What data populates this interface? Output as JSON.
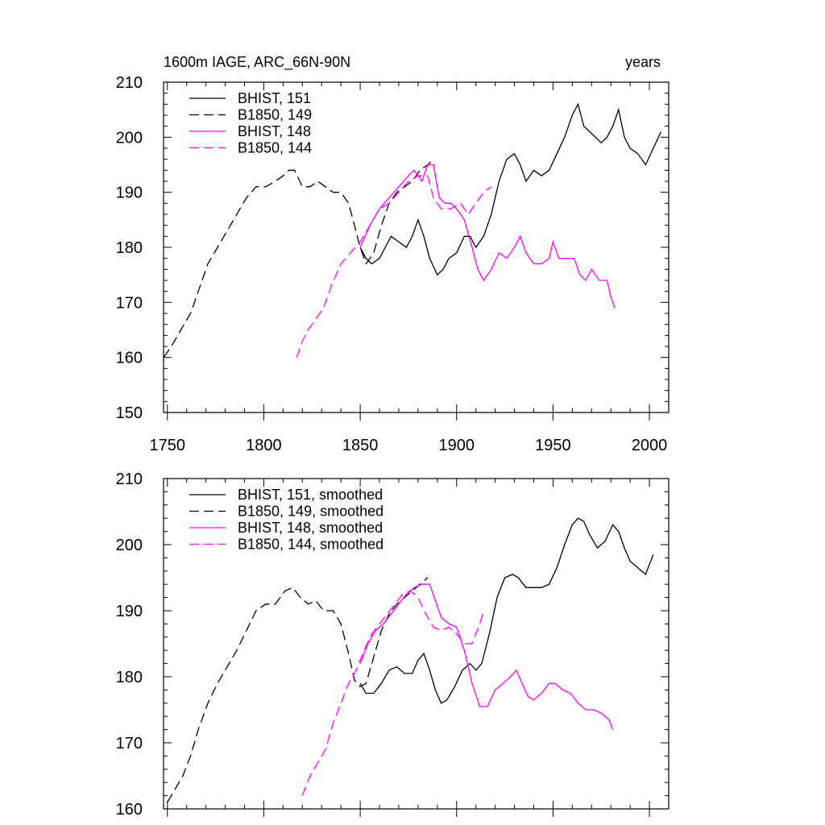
{
  "title_left": "1600m IAGE, ARC_66N-90N",
  "title_right": "years",
  "colors": {
    "black": "#000000",
    "magenta": "#ff00ff"
  },
  "chart_data": [
    {
      "type": "line",
      "xlim": [
        1748,
        2010
      ],
      "ylim": [
        150,
        210
      ],
      "xticks": [
        1750,
        1800,
        1850,
        1900,
        1950,
        2000
      ],
      "yticks": [
        150,
        160,
        170,
        180,
        190,
        200,
        210
      ],
      "xtick_labels_visible": true,
      "legend_position": "top-left",
      "series": [
        {
          "name": "BHIST, 151",
          "color": "#000000",
          "dash": "solid",
          "x": [
            1850,
            1853,
            1856,
            1860,
            1863,
            1866,
            1870,
            1874,
            1877,
            1880,
            1883,
            1886,
            1890,
            1893,
            1896,
            1900,
            1904,
            1907,
            1910,
            1914,
            1918,
            1922,
            1926,
            1930,
            1933,
            1936,
            1940,
            1944,
            1948,
            1952,
            1956,
            1960,
            1963,
            1966,
            1969,
            1972,
            1975,
            1978,
            1981,
            1984,
            1987,
            1990,
            1994,
            1998,
            2002,
            2006
          ],
          "y": [
            180,
            178,
            177,
            178,
            180,
            182,
            181,
            180,
            182,
            185,
            182,
            178,
            175,
            176,
            178,
            179,
            182,
            182,
            180,
            182,
            186,
            192,
            196,
            197,
            195,
            192,
            194,
            193,
            194,
            197,
            200,
            204,
            206,
            202,
            201,
            200,
            199,
            200,
            202,
            205,
            200,
            198,
            197,
            195,
            198,
            201
          ]
        },
        {
          "name": "B1850, 149",
          "color": "#000000",
          "dash": "dashed",
          "x": [
            1748,
            1752,
            1757,
            1762,
            1766,
            1771,
            1776,
            1781,
            1786,
            1791,
            1796,
            1801,
            1806,
            1810,
            1813,
            1816,
            1820,
            1824,
            1828,
            1832,
            1836,
            1840,
            1844,
            1847,
            1850,
            1853,
            1857,
            1861,
            1865,
            1869,
            1873,
            1877,
            1881,
            1885,
            1888
          ],
          "y": [
            160,
            162,
            165,
            168,
            172,
            177,
            180,
            183,
            186,
            189,
            191,
            191,
            192,
            193,
            194,
            194,
            191,
            191,
            192,
            191,
            190,
            190,
            188,
            184,
            180,
            177,
            179,
            184,
            188,
            190,
            191,
            192,
            194,
            195,
            196
          ]
        },
        {
          "name": "BHIST, 148",
          "color": "#ff00ff",
          "dash": "solid",
          "x": [
            1850,
            1855,
            1860,
            1865,
            1870,
            1875,
            1878,
            1882,
            1885,
            1888,
            1891,
            1894,
            1897,
            1900,
            1904,
            1908,
            1911,
            1914,
            1918,
            1922,
            1926,
            1930,
            1933,
            1936,
            1940,
            1944,
            1948,
            1950,
            1953,
            1957,
            1961,
            1964,
            1967,
            1970,
            1974,
            1978,
            1980,
            1982
          ],
          "y": [
            180,
            184,
            187,
            189,
            191,
            193,
            194,
            192,
            195,
            195,
            189,
            188,
            188,
            187,
            185,
            180,
            176,
            174,
            176,
            179,
            178,
            180,
            182,
            179,
            177,
            177,
            178,
            181,
            178,
            178,
            178,
            175,
            174,
            176,
            174,
            174,
            171,
            169
          ]
        },
        {
          "name": "B1850, 144",
          "color": "#ff00ff",
          "dash": "dashed",
          "x": [
            1817,
            1820,
            1823,
            1827,
            1831,
            1835,
            1840,
            1845,
            1850,
            1855,
            1860,
            1865,
            1870,
            1875,
            1880,
            1885,
            1888,
            1892,
            1897,
            1902,
            1906,
            1910,
            1914,
            1918
          ],
          "y": [
            160,
            163,
            165,
            167,
            169,
            173,
            177,
            179,
            181,
            184,
            187,
            188,
            190,
            192,
            193,
            193,
            189,
            187,
            187,
            188,
            186,
            188,
            190,
            191
          ]
        }
      ]
    },
    {
      "type": "line",
      "xlim": [
        1748,
        2010
      ],
      "ylim": [
        160,
        210
      ],
      "xticks": [
        1750,
        1800,
        1850,
        1900,
        1950,
        2000
      ],
      "yticks": [
        160,
        170,
        180,
        190,
        200,
        210
      ],
      "xtick_labels_visible": false,
      "legend_position": "top-left",
      "series": [
        {
          "name": "BHIST, 151, smoothed",
          "color": "#000000",
          "dash": "solid",
          "x": [
            1850,
            1853,
            1857,
            1861,
            1865,
            1869,
            1873,
            1877,
            1880,
            1883,
            1886,
            1889,
            1892,
            1895,
            1899,
            1903,
            1907,
            1910,
            1913,
            1917,
            1921,
            1925,
            1929,
            1932,
            1936,
            1940,
            1944,
            1948,
            1952,
            1956,
            1960,
            1963,
            1966,
            1969,
            1973,
            1977,
            1981,
            1984,
            1987,
            1990,
            1994,
            1998,
            2002
          ],
          "y": [
            179,
            177.5,
            177.5,
            179,
            181,
            181.5,
            180.5,
            180.5,
            182.5,
            183.5,
            181,
            178,
            176,
            176.5,
            178.5,
            181,
            182,
            181,
            182,
            186.5,
            192,
            195,
            195.5,
            195,
            193.5,
            193.5,
            193.5,
            194,
            196.5,
            200,
            203,
            204,
            203.5,
            201.5,
            199.5,
            200.5,
            203,
            202,
            199.5,
            197.5,
            196.5,
            195.5,
            198.5
          ]
        },
        {
          "name": "B1850, 149, smoothed",
          "color": "#000000",
          "dash": "dashed",
          "x": [
            1750,
            1754,
            1758,
            1762,
            1766,
            1771,
            1776,
            1781,
            1786,
            1791,
            1796,
            1801,
            1806,
            1811,
            1815,
            1819,
            1823,
            1827,
            1831,
            1836,
            1840,
            1844,
            1847,
            1850,
            1853,
            1857,
            1861,
            1865,
            1869,
            1873,
            1877,
            1881,
            1885
          ],
          "y": [
            161,
            163,
            165,
            168,
            172,
            176,
            179,
            181.5,
            184,
            187,
            190,
            191,
            191,
            193,
            193.5,
            192,
            191,
            191.5,
            190,
            190,
            188,
            183.5,
            179.5,
            178.5,
            179,
            183,
            187,
            189.5,
            191,
            192,
            193,
            194,
            195
          ]
        },
        {
          "name": "BHIST, 148, smoothed",
          "color": "#ff00ff",
          "dash": "solid",
          "x": [
            1850,
            1854,
            1858,
            1862,
            1866,
            1870,
            1874,
            1878,
            1882,
            1886,
            1889,
            1892,
            1896,
            1900,
            1904,
            1908,
            1912,
            1916,
            1920,
            1924,
            1928,
            1931,
            1934,
            1937,
            1940,
            1944,
            1948,
            1951,
            1955,
            1959,
            1963,
            1967,
            1971,
            1975,
            1979,
            1981
          ],
          "y": [
            182,
            185,
            187,
            188,
            189.5,
            191,
            192.5,
            193.5,
            194,
            194,
            191.5,
            189,
            188,
            187.5,
            184,
            179,
            175.5,
            175.5,
            178,
            179,
            180,
            181,
            179,
            177,
            176.5,
            177.5,
            179,
            179,
            178,
            177.5,
            176,
            175,
            175,
            174.5,
            173.5,
            172
          ]
        },
        {
          "name": "B1850, 144, smoothed",
          "color": "#ff00ff",
          "dash": "dashed",
          "x": [
            1820,
            1824,
            1828,
            1832,
            1836,
            1840,
            1844,
            1848,
            1852,
            1856,
            1860,
            1864,
            1868,
            1872,
            1876,
            1880,
            1884,
            1888,
            1892,
            1896,
            1900,
            1904,
            1908,
            1912,
            1914
          ],
          "y": [
            162,
            165,
            167,
            169,
            173,
            176,
            179,
            181,
            184,
            186.5,
            188,
            189.5,
            191,
            192.5,
            193,
            192,
            189.5,
            187.5,
            187,
            187.5,
            186.5,
            185,
            185,
            188,
            190
          ]
        }
      ]
    }
  ]
}
